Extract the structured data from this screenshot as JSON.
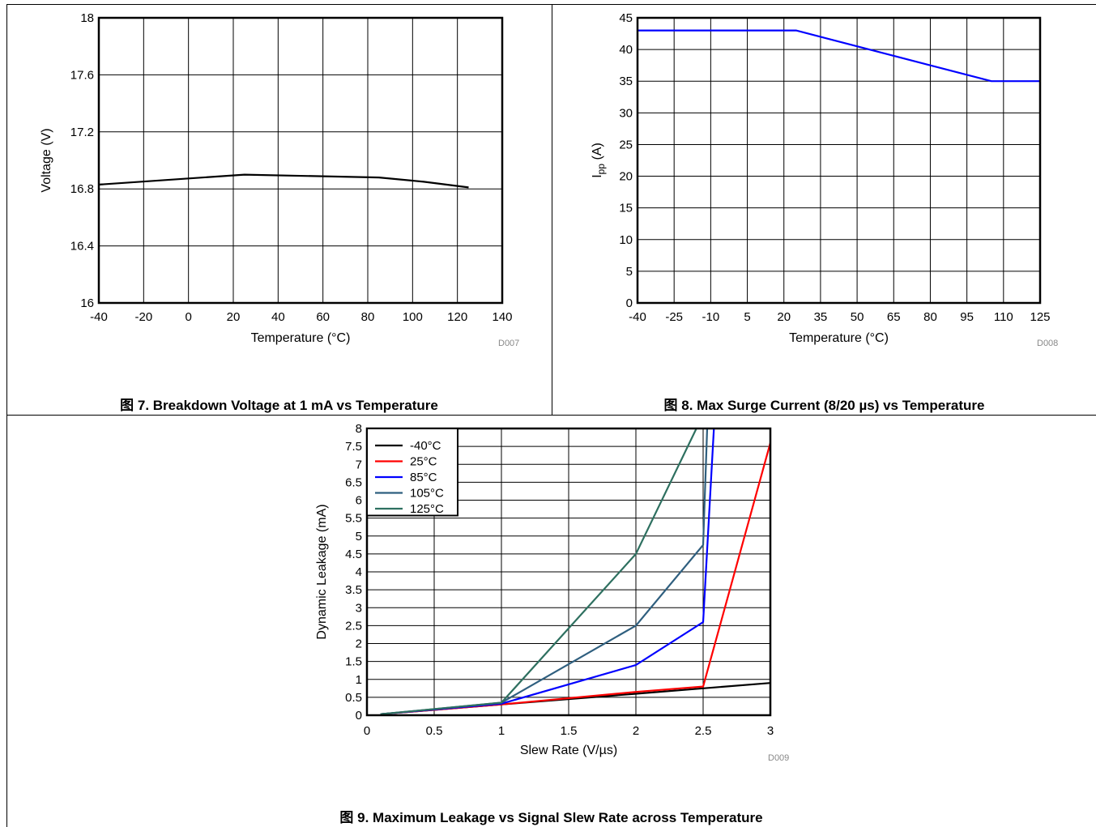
{
  "figures": [
    {
      "caption": "图 7. Breakdown Voltage at 1 mA vs Temperature",
      "code": "D007"
    },
    {
      "caption": "图 8. Max Surge Current (8/20 µs) vs Temperature",
      "code": "D008"
    },
    {
      "caption": "图 9. Maximum Leakage vs Signal Slew Rate across Temperature",
      "code": "D009"
    }
  ],
  "chart_data": [
    {
      "type": "line",
      "title": "图 7. Breakdown Voltage at 1 mA vs Temperature",
      "xlabel": "Temperature (°C)",
      "ylabel": "Voltage (V)",
      "xlim": [
        -40,
        140
      ],
      "ylim": [
        16,
        18
      ],
      "xticks": [
        -40,
        -20,
        0,
        20,
        40,
        60,
        80,
        100,
        120,
        140
      ],
      "yticks": [
        16,
        16.4,
        16.8,
        17.2,
        17.6,
        18
      ],
      "ytick_labels": [
        "16",
        "16.4",
        "16.8",
        "17.2",
        "17.6",
        "18"
      ],
      "grid": true,
      "series": [
        {
          "color": "#000000",
          "x": [
            -40,
            25,
            85,
            105,
            125
          ],
          "y": [
            16.83,
            16.9,
            16.88,
            16.85,
            16.81
          ]
        }
      ]
    },
    {
      "type": "line",
      "title": "图 8. Max Surge Current (8/20 µs) vs Temperature",
      "xlabel": "Temperature (°C)",
      "ylabel": "I",
      "ylabel_sub": "pp",
      "ylabel_suffix": " (A)",
      "xlim": [
        -40,
        125
      ],
      "ylim": [
        0,
        45
      ],
      "xticks": [
        -40,
        -25,
        -10,
        5,
        20,
        35,
        50,
        65,
        80,
        95,
        110,
        125
      ],
      "yticks": [
        0,
        5,
        10,
        15,
        20,
        25,
        30,
        35,
        40,
        45
      ],
      "grid": true,
      "series": [
        {
          "color": "#0000ff",
          "x": [
            -40,
            25,
            105,
            125
          ],
          "y": [
            43,
            43,
            35,
            35
          ]
        }
      ]
    },
    {
      "type": "line",
      "title": "图 9. Maximum Leakage vs Signal Slew Rate across Temperature",
      "xlabel": "Slew Rate (V/µs)",
      "ylabel": "Dynamic Leakage (mA)",
      "xlim": [
        0,
        3
      ],
      "ylim": [
        0,
        8
      ],
      "xticks": [
        0,
        0.5,
        1,
        1.5,
        2,
        2.5,
        3
      ],
      "yticks": [
        0,
        0.5,
        1,
        1.5,
        2,
        2.5,
        3,
        3.5,
        4,
        4.5,
        5,
        5.5,
        6,
        6.5,
        7,
        7.5,
        8
      ],
      "grid": true,
      "legend": "top-left",
      "series": [
        {
          "name": "-40°C",
          "color": "#000000",
          "x": [
            0.1,
            1,
            2,
            2.5,
            3
          ],
          "y": [
            0.03,
            0.3,
            0.6,
            0.75,
            0.9
          ]
        },
        {
          "name": "25°C",
          "color": "#ff0000",
          "x": [
            0.1,
            1,
            2,
            2.5,
            3
          ],
          "y": [
            0.03,
            0.3,
            0.65,
            0.8,
            7.6
          ]
        },
        {
          "name": "85°C",
          "color": "#0000ff",
          "x": [
            0.1,
            1,
            2,
            2.5,
            2.58
          ],
          "y": [
            0.03,
            0.32,
            1.4,
            2.6,
            8
          ]
        },
        {
          "name": "105°C",
          "color": "#2f5f7f",
          "x": [
            0.1,
            1,
            2,
            2.5,
            2.53
          ],
          "y": [
            0.03,
            0.35,
            2.5,
            4.75,
            8
          ]
        },
        {
          "name": "125°C",
          "color": "#2e7060",
          "x": [
            0.1,
            1,
            2,
            2.45
          ],
          "y": [
            0.03,
            0.35,
            4.5,
            8
          ]
        }
      ]
    }
  ]
}
